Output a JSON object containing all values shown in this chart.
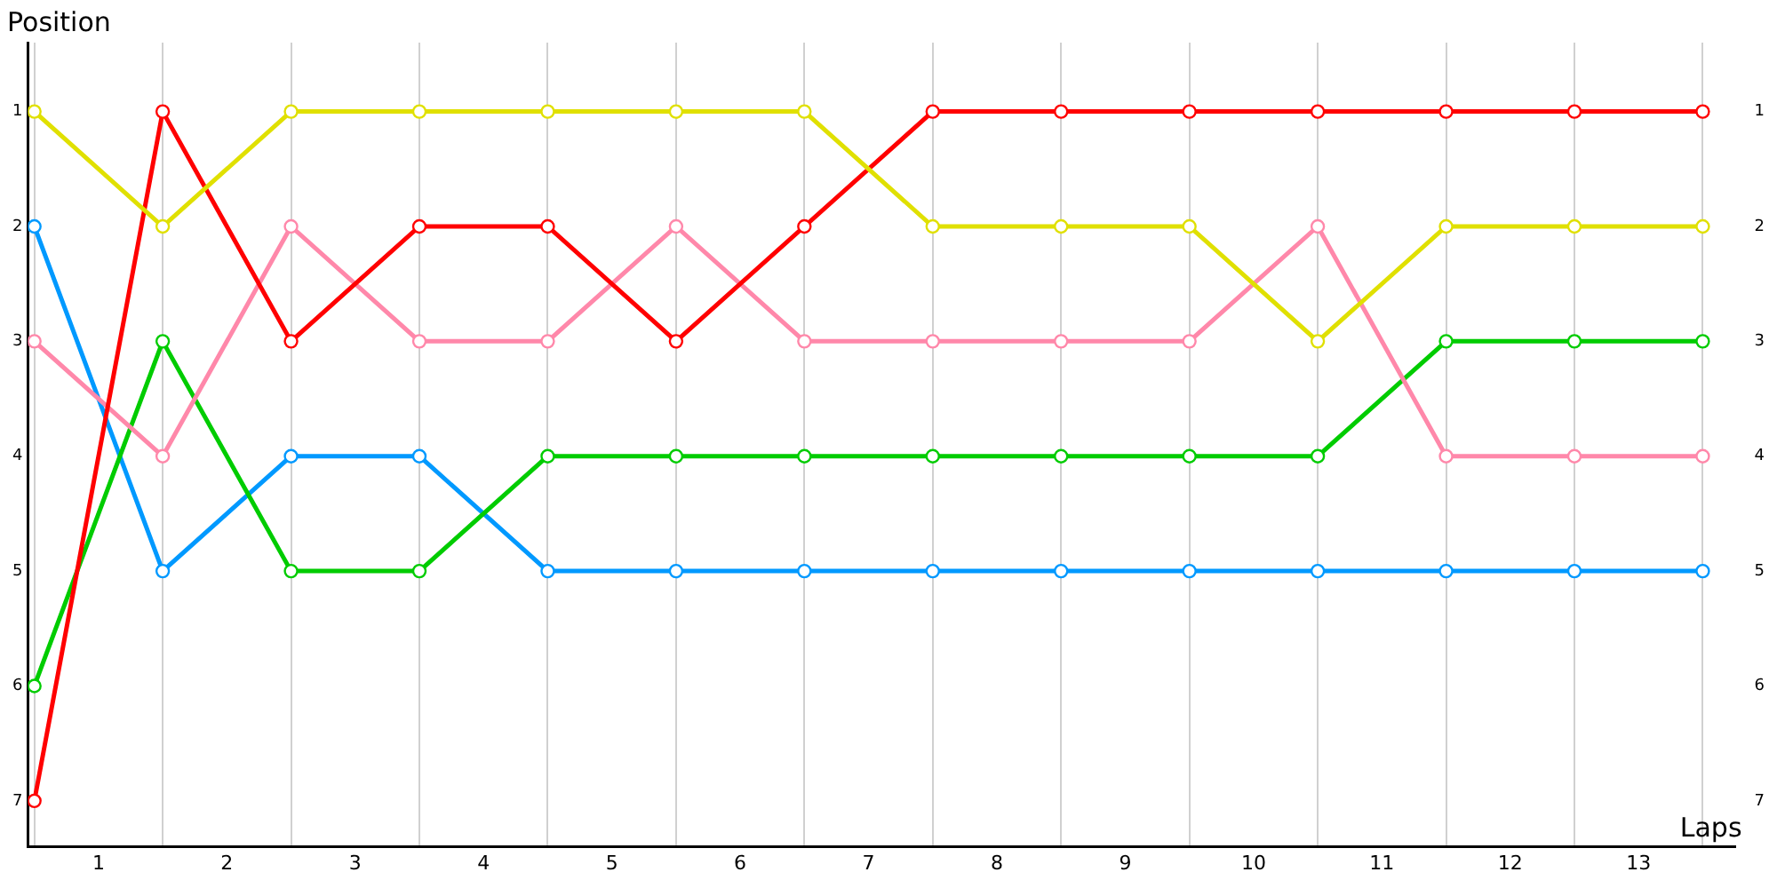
{
  "chart_data": {
    "type": "line",
    "xlabel": "Laps",
    "ylabel": "Position",
    "x": [
      0,
      1,
      2,
      3,
      4,
      5,
      6,
      7,
      8,
      9,
      10,
      11,
      12,
      13
    ],
    "xlim": [
      -0.05,
      13.25
    ],
    "xticks": [
      {
        "value": 0,
        "label": null
      },
      {
        "value": 0.5,
        "label": "1"
      },
      {
        "value": 1,
        "label": null
      },
      {
        "value": 1.5,
        "label": "2"
      },
      {
        "value": 2,
        "label": null
      },
      {
        "value": 2.5,
        "label": "3"
      },
      {
        "value": 3,
        "label": null
      },
      {
        "value": 3.5,
        "label": "4"
      },
      {
        "value": 4,
        "label": null
      },
      {
        "value": 4.5,
        "label": "5"
      },
      {
        "value": 5,
        "label": null
      },
      {
        "value": 5.5,
        "label": "6"
      },
      {
        "value": 6,
        "label": null
      },
      {
        "value": 6.5,
        "label": "7"
      },
      {
        "value": 7,
        "label": null
      },
      {
        "value": 7.5,
        "label": "8"
      },
      {
        "value": 8,
        "label": null
      },
      {
        "value": 8.5,
        "label": "9"
      },
      {
        "value": 9,
        "label": null
      },
      {
        "value": 9.5,
        "label": "10"
      },
      {
        "value": 10,
        "label": null
      },
      {
        "value": 10.5,
        "label": "11"
      },
      {
        "value": 11,
        "label": null
      },
      {
        "value": 11.5,
        "label": "12"
      },
      {
        "value": 12,
        "label": null
      },
      {
        "value": 12.5,
        "label": "13"
      },
      {
        "value": 13,
        "label": null
      }
    ],
    "ylim": [
      7.4,
      0.4
    ],
    "yticks": [
      1,
      2,
      3,
      4,
      5,
      6,
      7
    ],
    "y2lim": [
      7.4,
      0.4
    ],
    "y2ticks": [
      1,
      2,
      3,
      4,
      5,
      6,
      7
    ],
    "grid": "x",
    "legend": false,
    "marker": "circle",
    "line_style": "solid",
    "series": [
      {
        "color": "#e0e000",
        "values": [
          1,
          2,
          1,
          1,
          1,
          1,
          1,
          2,
          2,
          2,
          3,
          2,
          2,
          2
        ]
      },
      {
        "color": "#ff0000",
        "values": [
          7,
          1,
          3,
          2,
          2,
          3,
          2,
          1,
          1,
          1,
          1,
          1,
          1,
          1
        ]
      },
      {
        "color": "#ff88aa",
        "values": [
          3,
          4,
          2,
          3,
          3,
          2,
          3,
          3,
          3,
          3,
          2,
          4,
          4,
          4
        ]
      },
      {
        "color": "#00cc00",
        "values": [
          6,
          3,
          5,
          5,
          4,
          4,
          4,
          4,
          4,
          4,
          4,
          3,
          3,
          3
        ]
      },
      {
        "color": "#0099ff",
        "values": [
          2,
          5,
          4,
          4,
          5,
          5,
          5,
          5,
          5,
          5,
          5,
          5,
          5,
          5
        ]
      }
    ]
  }
}
